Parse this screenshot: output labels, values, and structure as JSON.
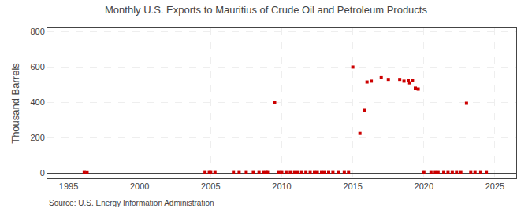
{
  "chart_data": {
    "type": "scatter",
    "title": "Monthly U.S. Exports to Mauritius of Crude Oil and Petroleum Products",
    "ylabel": "Thousand Barrels",
    "annotations": [
      "Source: U.S. Energy Information Administration"
    ],
    "x": [
      1996.1,
      1996.3,
      2004.6,
      2004.9,
      2005.0,
      2005.3,
      2006.6,
      2007.0,
      2007.5,
      2008.0,
      2008.4,
      2008.7,
      2008.9,
      2009.0,
      2009.5,
      2009.8,
      2010.0,
      2010.3,
      2010.6,
      2010.9,
      2011.1,
      2011.4,
      2011.7,
      2012.0,
      2012.3,
      2012.5,
      2012.8,
      2013.0,
      2013.3,
      2013.6,
      2014.0,
      2014.4,
      2014.7,
      2015.0,
      2015.5,
      2015.8,
      2016.0,
      2016.3,
      2017.0,
      2017.5,
      2018.3,
      2018.6,
      2018.9,
      2019.0,
      2019.2,
      2019.4,
      2019.6,
      2020.0,
      2020.5,
      2020.8,
      2021.0,
      2021.4,
      2021.7,
      2022.0,
      2022.3,
      2022.6,
      2023.0,
      2023.3,
      2023.6,
      2024.0,
      2024.4
    ],
    "values": [
      3,
      2,
      3,
      3,
      3,
      3,
      3,
      3,
      3,
      3,
      3,
      3,
      3,
      3,
      400,
      3,
      3,
      3,
      3,
      3,
      3,
      3,
      3,
      3,
      3,
      3,
      3,
      3,
      3,
      3,
      3,
      3,
      3,
      600,
      225,
      355,
      515,
      520,
      540,
      530,
      530,
      520,
      525,
      510,
      525,
      480,
      475,
      3,
      3,
      3,
      3,
      3,
      3,
      3,
      3,
      3,
      395,
      3,
      3,
      3,
      3
    ],
    "color": "#cc0000",
    "marker": "square",
    "xlim": [
      1993.5,
      2026.5
    ],
    "ylim": [
      -30,
      820
    ],
    "xticks": [
      1995,
      2000,
      2005,
      2010,
      2015,
      2020,
      2025
    ],
    "yticks": [
      0,
      200,
      400,
      600,
      800
    ],
    "grid": true
  }
}
